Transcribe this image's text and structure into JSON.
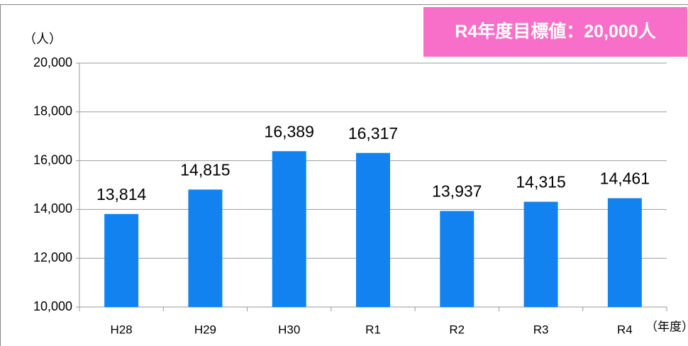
{
  "chart_data": {
    "type": "bar",
    "annotation": "R4年度目標値：20,000人",
    "y_label": "（人）",
    "x_label": "（年度）",
    "categories": [
      "H28",
      "H29",
      "H30",
      "R1",
      "R2",
      "R3",
      "R4"
    ],
    "values": [
      13814,
      14815,
      16389,
      16317,
      13937,
      14315,
      14461
    ],
    "value_labels": [
      "13,814",
      "14,815",
      "16,389",
      "16,317",
      "13,937",
      "14,315",
      "14,461"
    ],
    "color": "#1282f0",
    "ylim": [
      10000,
      20000
    ],
    "yticks": [
      {
        "value": 10000,
        "label": "10,000"
      },
      {
        "value": 12000,
        "label": "12,000"
      },
      {
        "value": 14000,
        "label": "14,000"
      },
      {
        "value": 16000,
        "label": "16,000"
      },
      {
        "value": 18000,
        "label": "18,000"
      },
      {
        "value": 20000,
        "label": "20,000"
      }
    ],
    "grid": true
  }
}
